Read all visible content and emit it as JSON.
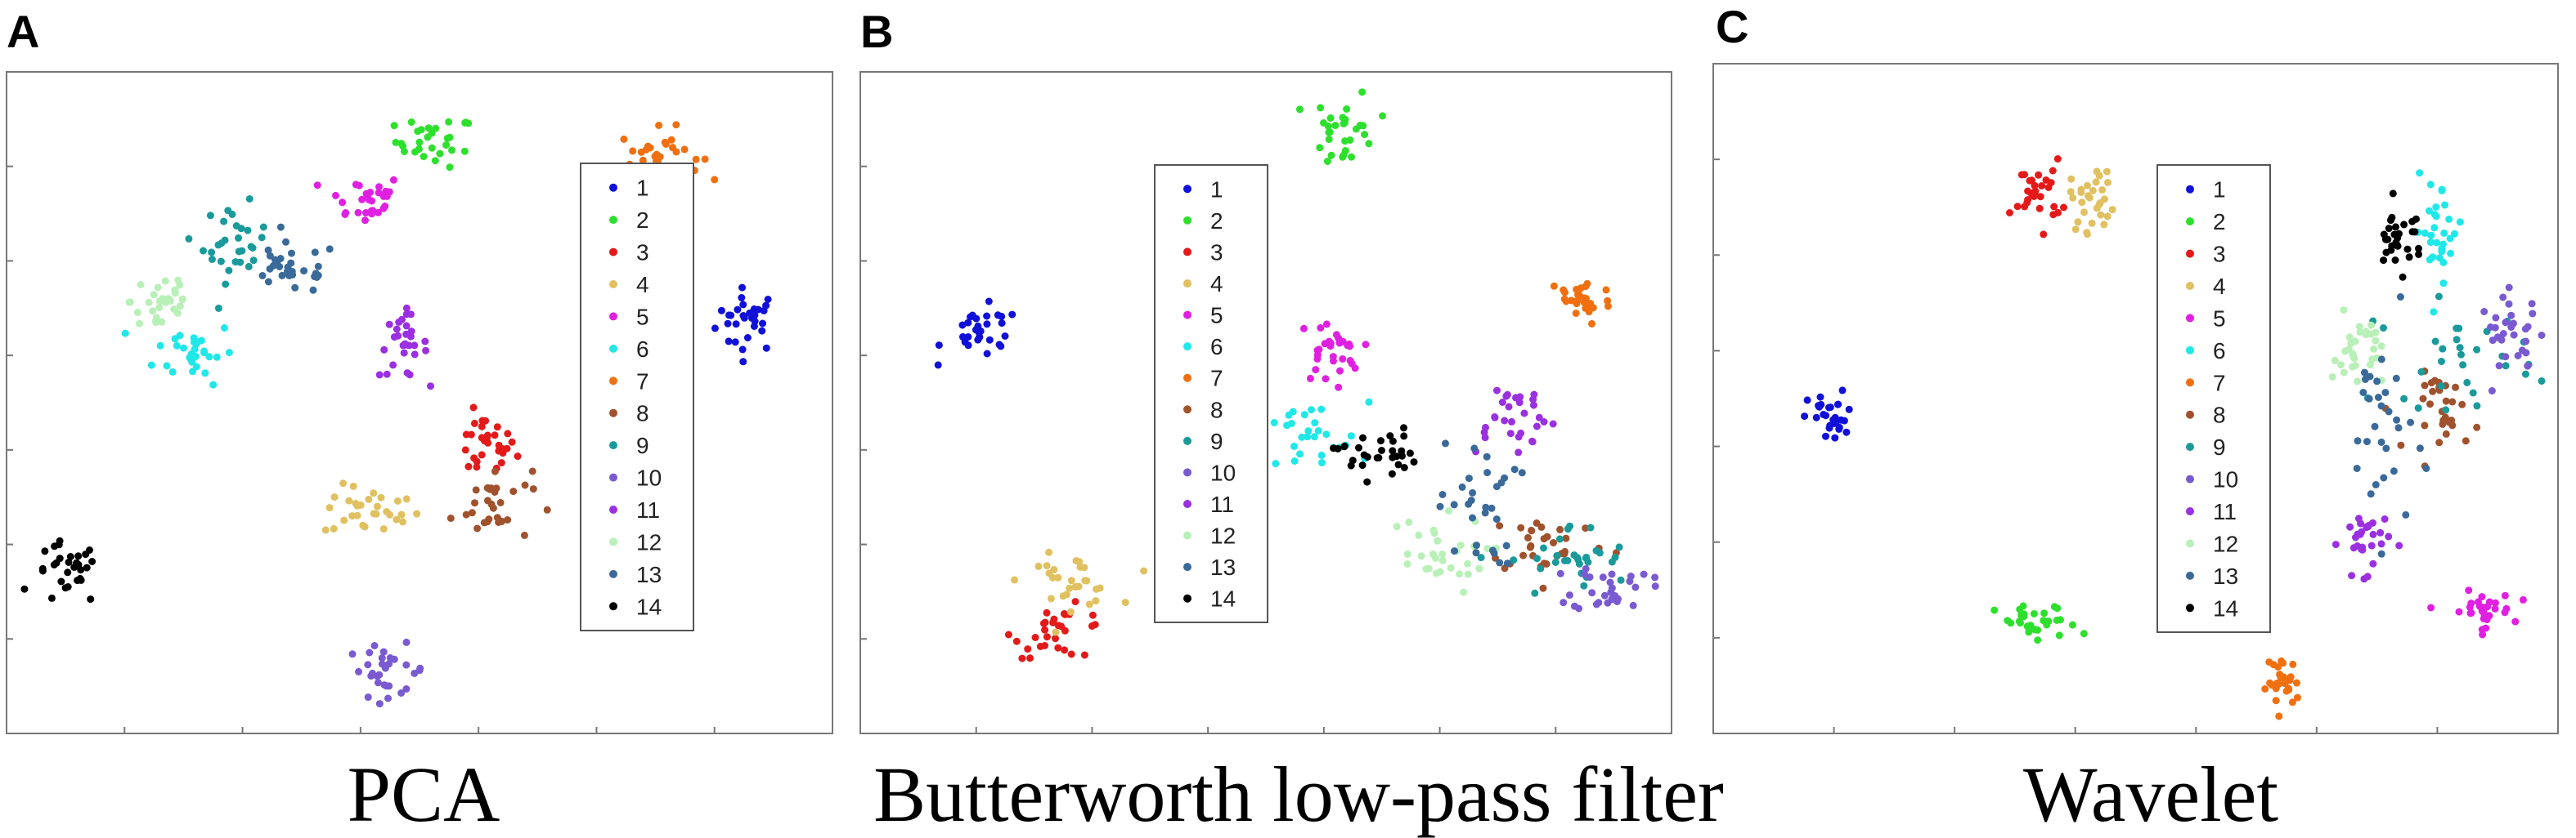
{
  "figure": {
    "colors": {
      "1": "#1010d8",
      "2": "#2ee02e",
      "3": "#e41a1a",
      "4": "#e0c060",
      "5": "#e020e0",
      "6": "#20e8e8",
      "7": "#f07010",
      "8": "#a0522d",
      "9": "#1a9a9a",
      "10": "#7a5ad0",
      "11": "#9a30e0",
      "12": "#b8f0b8",
      "13": "#3a6a9a",
      "14": "#000000"
    }
  },
  "chart_data": [
    {
      "type": "scatter",
      "panel": "A",
      "title": "PCA",
      "xlabel": "",
      "ylabel": "",
      "xlim": [
        0,
        100
      ],
      "ylim": [
        0,
        100
      ],
      "grid": false,
      "legend": {
        "position": "right",
        "entries": [
          "1",
          "2",
          "3",
          "4",
          "5",
          "6",
          "7",
          "8",
          "9",
          "10",
          "11",
          "12",
          "13",
          "14"
        ]
      },
      "clusters": [
        {
          "label": "1",
          "x": 91,
          "y": 63,
          "sx": 2.0,
          "sy": 2.5,
          "n": 30
        },
        {
          "label": "2",
          "x": 52,
          "y": 91,
          "sx": 2.5,
          "sy": 2.0,
          "n": 30
        },
        {
          "label": "3",
          "x": 58,
          "y": 43,
          "sx": 2.0,
          "sy": 2.5,
          "n": 30
        },
        {
          "label": "4",
          "x": 44,
          "y": 33,
          "sx": 3.0,
          "sy": 2.0,
          "n": 30
        },
        {
          "label": "5",
          "x": 43,
          "y": 82,
          "sx": 2.5,
          "sy": 2.0,
          "n": 30
        },
        {
          "label": "6",
          "x": 22,
          "y": 58,
          "sx": 2.5,
          "sy": 2.5,
          "n": 30
        },
        {
          "label": "7",
          "x": 80,
          "y": 89,
          "sx": 2.5,
          "sy": 2.0,
          "n": 30
        },
        {
          "label": "8",
          "x": 59,
          "y": 34,
          "sx": 2.5,
          "sy": 3.0,
          "n": 30
        },
        {
          "label": "9",
          "x": 27,
          "y": 75,
          "sx": 2.0,
          "sy": 3.0,
          "n": 30
        },
        {
          "label": "10",
          "x": 46,
          "y": 8,
          "sx": 2.5,
          "sy": 2.0,
          "n": 30
        },
        {
          "label": "11",
          "x": 48,
          "y": 59,
          "sx": 1.5,
          "sy": 2.5,
          "n": 30
        },
        {
          "label": "12",
          "x": 18,
          "y": 66,
          "sx": 2.0,
          "sy": 3.0,
          "n": 30
        },
        {
          "label": "13",
          "x": 34,
          "y": 71,
          "sx": 3.0,
          "sy": 2.0,
          "n": 30
        },
        {
          "label": "14",
          "x": 6,
          "y": 23,
          "sx": 2.0,
          "sy": 2.5,
          "n": 30
        }
      ]
    },
    {
      "type": "scatter",
      "panel": "B",
      "title": "Butterworth low-pass filter",
      "xlabel": "",
      "ylabel": "",
      "xlim": [
        0,
        100
      ],
      "ylim": [
        0,
        100
      ],
      "grid": false,
      "legend": {
        "position": "center",
        "entries": [
          "1",
          "2",
          "3",
          "4",
          "5",
          "6",
          "7",
          "8",
          "9",
          "10",
          "11",
          "12",
          "13",
          "14"
        ]
      },
      "clusters": [
        {
          "label": "1",
          "x": 14,
          "y": 61,
          "sx": 2.5,
          "sy": 2.0,
          "n": 30
        },
        {
          "label": "2",
          "x": 60,
          "y": 93,
          "sx": 2.0,
          "sy": 3.0,
          "n": 30
        },
        {
          "label": "3",
          "x": 24,
          "y": 14,
          "sx": 3.0,
          "sy": 2.0,
          "n": 30
        },
        {
          "label": "4",
          "x": 25,
          "y": 22,
          "sx": 3.0,
          "sy": 2.0,
          "n": 30
        },
        {
          "label": "5",
          "x": 58,
          "y": 58,
          "sx": 2.0,
          "sy": 2.5,
          "n": 30
        },
        {
          "label": "6",
          "x": 55,
          "y": 44,
          "sx": 4.0,
          "sy": 3.0,
          "n": 30
        },
        {
          "label": "7",
          "x": 90,
          "y": 66,
          "sx": 2.0,
          "sy": 2.0,
          "n": 30
        },
        {
          "label": "8",
          "x": 86,
          "y": 28,
          "sx": 4.0,
          "sy": 2.5,
          "n": 30
        },
        {
          "label": "9",
          "x": 89,
          "y": 25,
          "sx": 4.0,
          "sy": 3.0,
          "n": 30
        },
        {
          "label": "10",
          "x": 94,
          "y": 21,
          "sx": 2.5,
          "sy": 2.0,
          "n": 30
        },
        {
          "label": "11",
          "x": 81,
          "y": 48,
          "sx": 3.0,
          "sy": 3.0,
          "n": 30
        },
        {
          "label": "12",
          "x": 71,
          "y": 26,
          "sx": 3.5,
          "sy": 3.0,
          "n": 30
        },
        {
          "label": "13",
          "x": 77,
          "y": 34,
          "sx": 2.5,
          "sy": 5.0,
          "n": 30
        },
        {
          "label": "14",
          "x": 64,
          "y": 42,
          "sx": 2.5,
          "sy": 2.0,
          "n": 30
        }
      ]
    },
    {
      "type": "scatter",
      "panel": "C",
      "title": "Wavelet",
      "xlabel": "",
      "ylabel": "",
      "xlim": [
        0,
        100
      ],
      "ylim": [
        0,
        100
      ],
      "grid": false,
      "legend": {
        "position": "center",
        "entries": [
          "1",
          "2",
          "3",
          "4",
          "5",
          "6",
          "7",
          "8",
          "9",
          "10",
          "11",
          "12",
          "13",
          "14"
        ]
      },
      "clusters": [
        {
          "label": "1",
          "x": 13,
          "y": 47,
          "sx": 1.5,
          "sy": 2.0,
          "n": 30
        },
        {
          "label": "2",
          "x": 38,
          "y": 15,
          "sx": 2.5,
          "sy": 1.5,
          "n": 30
        },
        {
          "label": "3",
          "x": 38,
          "y": 82,
          "sx": 1.5,
          "sy": 2.5,
          "n": 30
        },
        {
          "label": "4",
          "x": 45,
          "y": 81,
          "sx": 1.5,
          "sy": 2.5,
          "n": 30
        },
        {
          "label": "5",
          "x": 92,
          "y": 17,
          "sx": 2.0,
          "sy": 1.5,
          "n": 30
        },
        {
          "label": "6",
          "x": 87,
          "y": 76,
          "sx": 1.5,
          "sy": 4.0,
          "n": 30
        },
        {
          "label": "7",
          "x": 68,
          "y": 6,
          "sx": 1.0,
          "sy": 2.0,
          "n": 30
        },
        {
          "label": "8",
          "x": 88,
          "y": 48,
          "sx": 2.0,
          "sy": 3.0,
          "n": 30
        },
        {
          "label": "9",
          "x": 89,
          "y": 57,
          "sx": 5.0,
          "sy": 4.0,
          "n": 30
        },
        {
          "label": "10",
          "x": 96,
          "y": 60,
          "sx": 2.0,
          "sy": 3.0,
          "n": 30
        },
        {
          "label": "11",
          "x": 78,
          "y": 28,
          "sx": 1.5,
          "sy": 2.5,
          "n": 30
        },
        {
          "label": "12",
          "x": 77,
          "y": 57,
          "sx": 1.5,
          "sy": 3.0,
          "n": 30
        },
        {
          "label": "13",
          "x": 80,
          "y": 45,
          "sx": 2.0,
          "sy": 8.0,
          "n": 30
        },
        {
          "label": "14",
          "x": 82,
          "y": 75,
          "sx": 1.5,
          "sy": 2.5,
          "n": 30
        }
      ]
    }
  ]
}
